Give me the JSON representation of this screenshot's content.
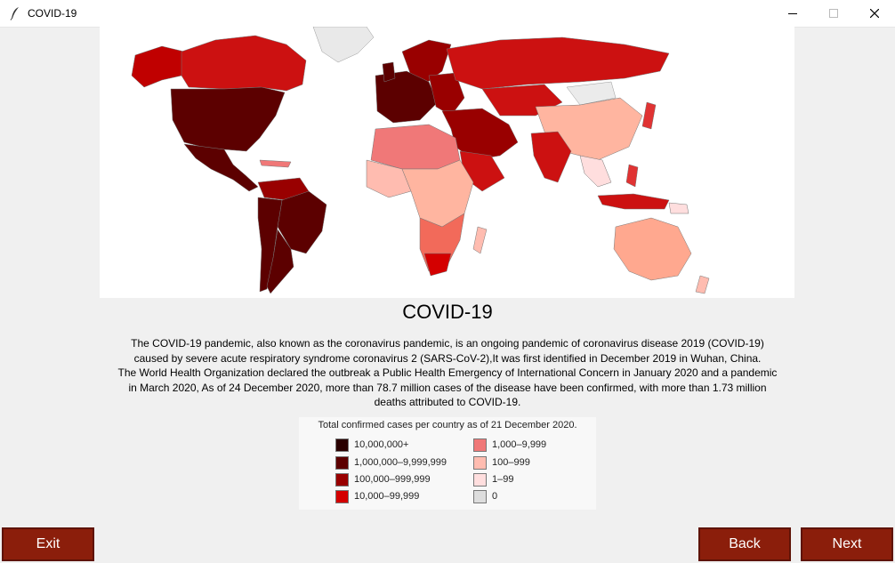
{
  "window": {
    "title": "COVID-19"
  },
  "heading": "COVID-19",
  "description": [
    "The COVID-19 pandemic, also known as the coronavirus pandemic, is an ongoing pandemic of coronavirus disease 2019 (COVID-19)",
    "caused by severe acute respiratory syndrome coronavirus 2 (SARS-CoV-2),It was first identified in December 2019 in Wuhan, China.",
    "The World Health Organization declared the outbreak a Public Health Emergency of International Concern in January 2020 and a pandemic",
    "in March 2020, As of 24 December 2020, more than 78.7 million cases of the disease have been confirmed, with more than 1.73 million",
    "deaths attributed to COVID-19."
  ],
  "legend": {
    "title": "Total confirmed cases per country as of 21 December 2020.",
    "items": [
      {
        "label": "10,000,000+",
        "color": "#2a0000"
      },
      {
        "label": "1,000,000–9,999,999",
        "color": "#5c0000"
      },
      {
        "label": "100,000–999,999",
        "color": "#990000"
      },
      {
        "label": "10,000–99,999",
        "color": "#d40000"
      },
      {
        "label": "1,000–9,999",
        "color": "#f07878"
      },
      {
        "label": "100–999",
        "color": "#ffbcb0"
      },
      {
        "label": "1–99",
        "color": "#ffdede"
      },
      {
        "label": "0",
        "color": "#dddddd"
      }
    ]
  },
  "buttons": {
    "exit": "Exit",
    "back": "Back",
    "next": "Next"
  }
}
